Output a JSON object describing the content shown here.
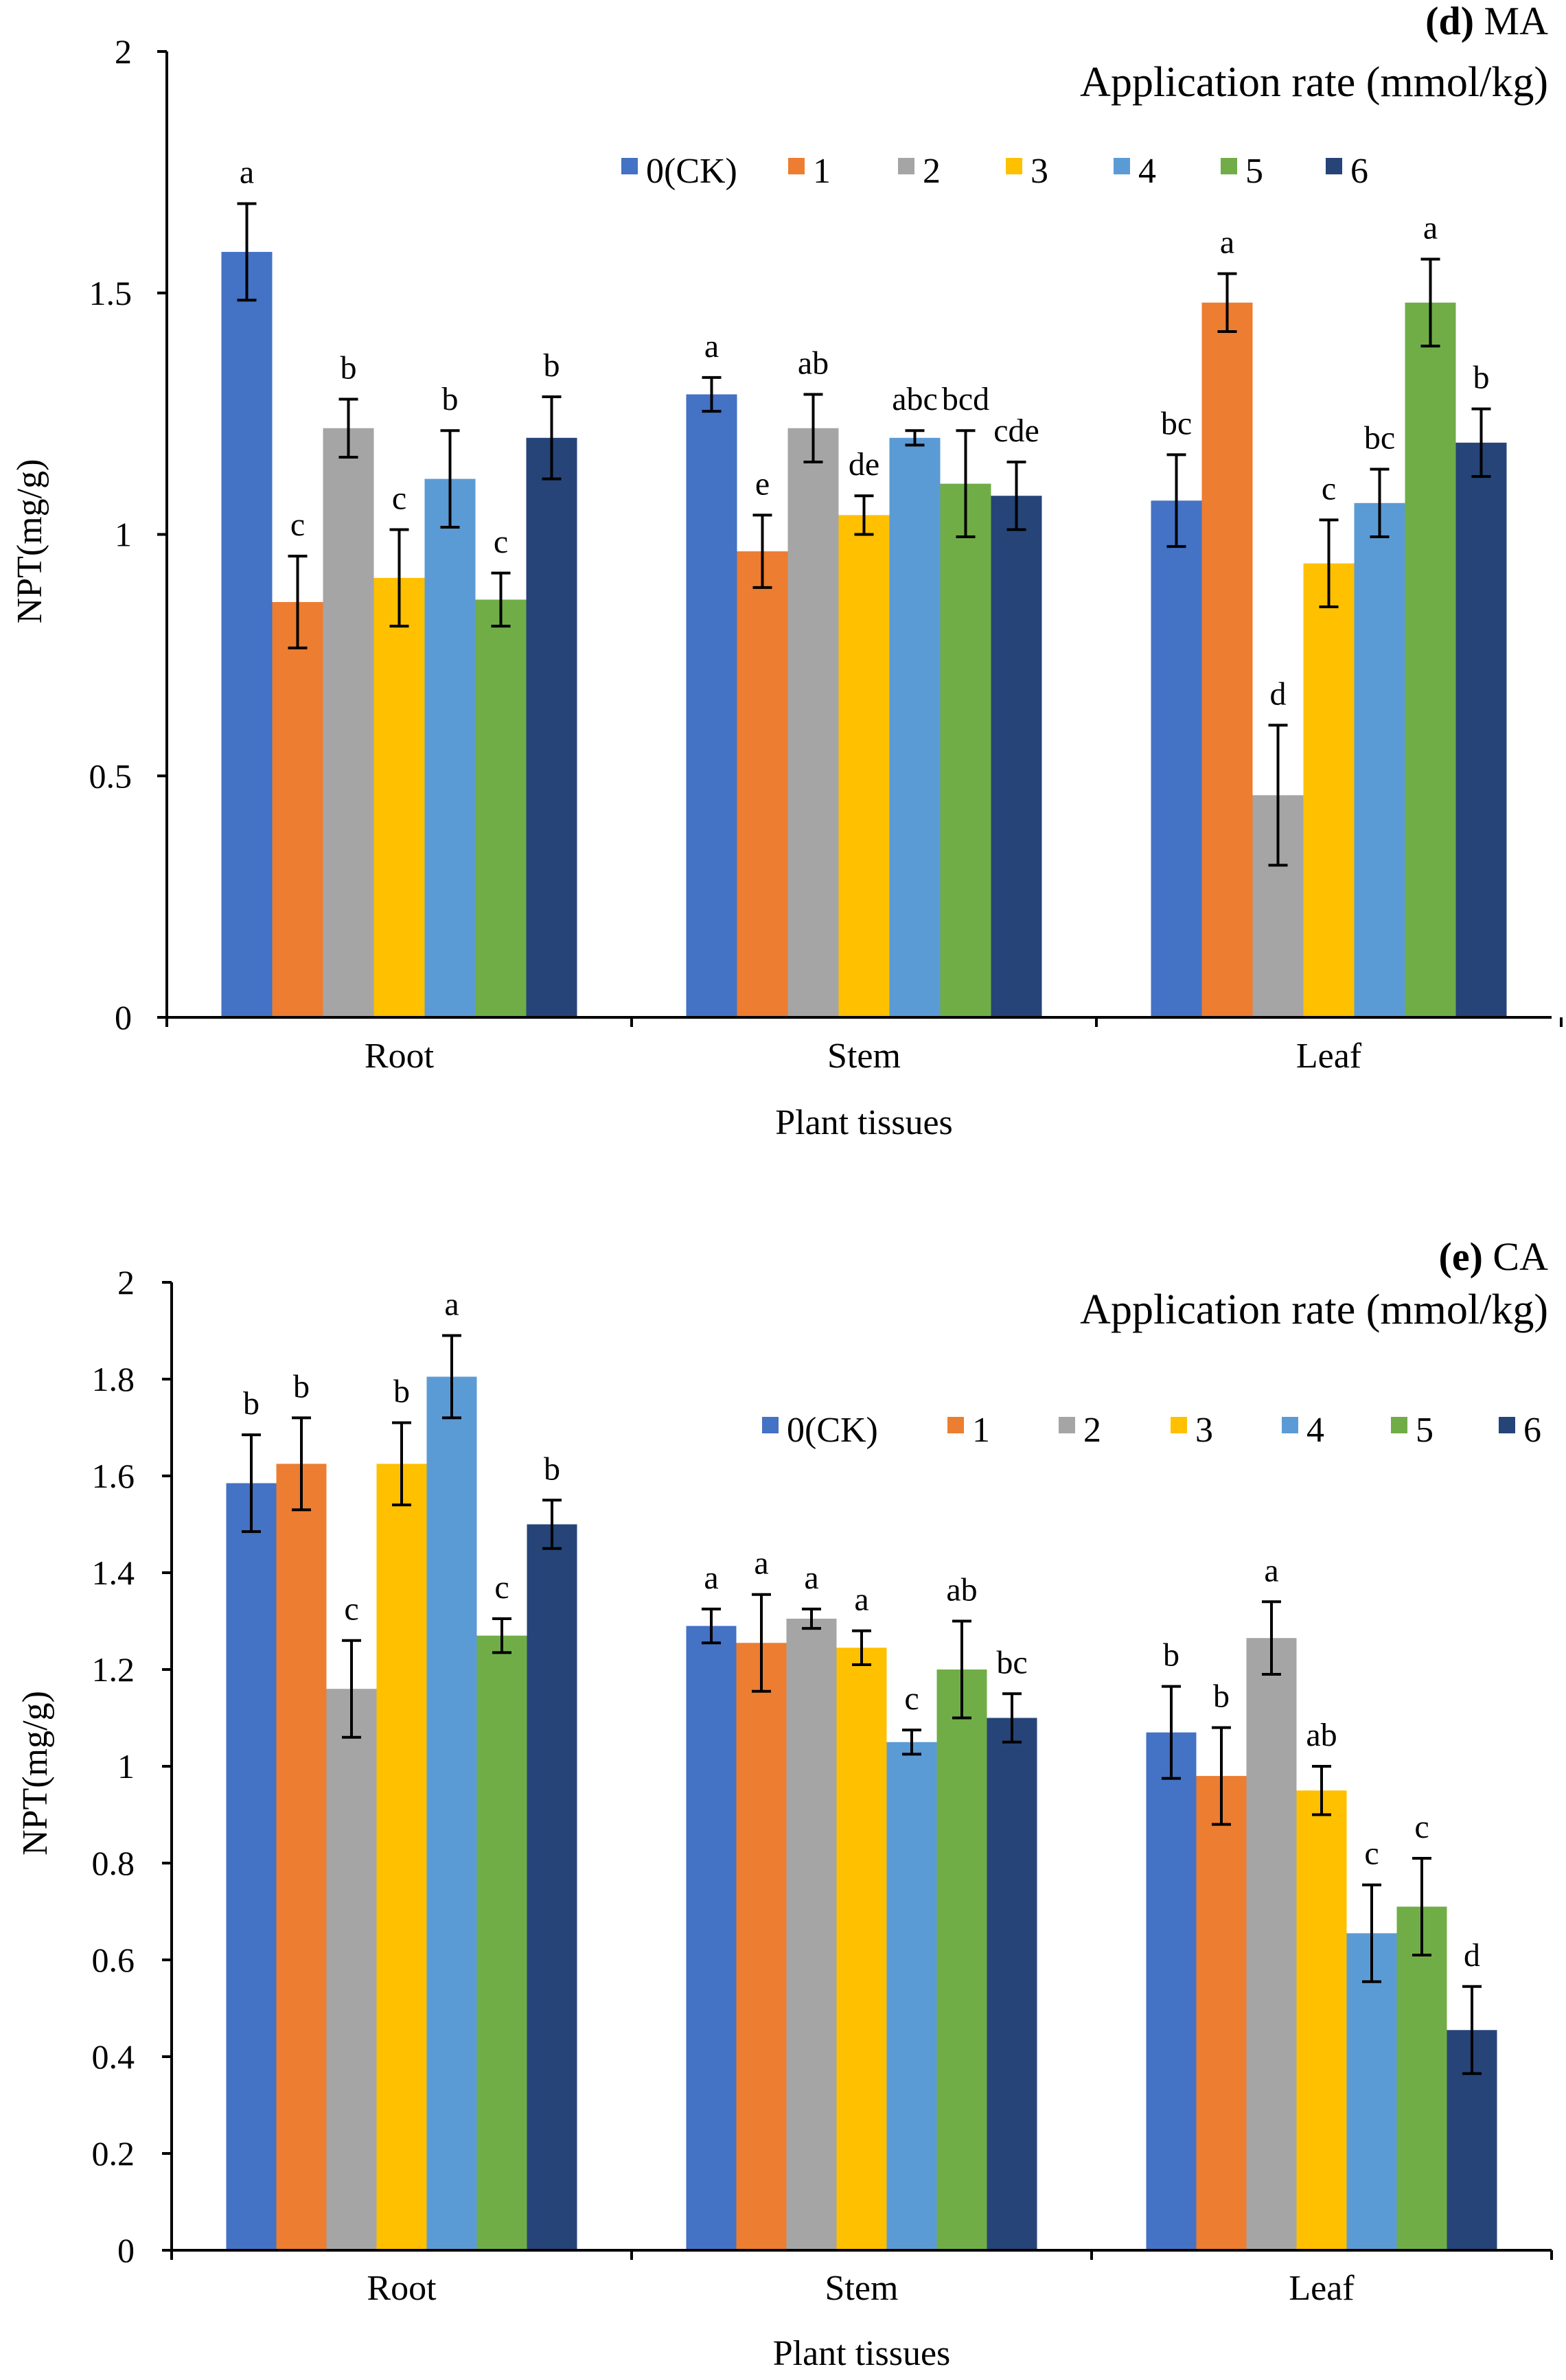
{
  "chart_data": [
    {
      "type": "bar",
      "panel_letter": "(d)",
      "panel_name": "MA",
      "legend_title": "Application rate (mmol/kg)",
      "xlabel": "Plant tissues",
      "ylabel": "NPT(mg/g)",
      "ylim": [
        0,
        2
      ],
      "yticks": [
        "0",
        "0.5",
        "1",
        "1.5",
        "2"
      ],
      "categories": [
        "Root",
        "Stem",
        "Leaf"
      ],
      "series": [
        {
          "name": "0(CK)",
          "color": "#4472c4",
          "values": [
            1.585,
            1.29,
            1.07
          ],
          "errors": [
            0.1,
            0.035,
            0.095
          ],
          "letters": [
            "a",
            "a",
            "bc"
          ]
        },
        {
          "name": "1",
          "color": "#ed7d31",
          "values": [
            0.86,
            0.965,
            1.48
          ],
          "errors": [
            0.095,
            0.075,
            0.06
          ],
          "letters": [
            "c",
            "e",
            "a"
          ]
        },
        {
          "name": "2",
          "color": "#a5a5a5",
          "values": [
            1.22,
            1.22,
            0.46
          ],
          "errors": [
            0.06,
            0.07,
            0.145
          ],
          "letters": [
            "b",
            "ab",
            "d"
          ]
        },
        {
          "name": "3",
          "color": "#ffc000",
          "values": [
            0.91,
            1.04,
            0.94
          ],
          "errors": [
            0.1,
            0.04,
            0.09
          ],
          "letters": [
            "c",
            "de",
            "c"
          ]
        },
        {
          "name": "4",
          "color": "#5b9bd5",
          "values": [
            1.115,
            1.2,
            1.065
          ],
          "errors": [
            0.1,
            0.015,
            0.07
          ],
          "letters": [
            "b",
            "abc",
            "bc"
          ]
        },
        {
          "name": "5",
          "color": "#70ad47",
          "values": [
            0.865,
            1.105,
            1.48
          ],
          "errors": [
            0.055,
            0.11,
            0.09
          ],
          "letters": [
            "c",
            "bcd",
            "a"
          ]
        },
        {
          "name": "6",
          "color": "#264478",
          "values": [
            1.2,
            1.08,
            1.19
          ],
          "errors": [
            0.085,
            0.07,
            0.07
          ],
          "letters": [
            "b",
            "cde",
            "b"
          ]
        }
      ]
    },
    {
      "type": "bar",
      "panel_letter": "(e)",
      "panel_name": "CA",
      "legend_title": "Application rate (mmol/kg)",
      "xlabel": "Plant tissues",
      "ylabel": "NPT(mg/g)",
      "ylim": [
        0,
        2
      ],
      "yticks": [
        "0",
        "0.2",
        "0.4",
        "0.6",
        "0.8",
        "1",
        "1.2",
        "1.4",
        "1.6",
        "1.8",
        "2"
      ],
      "categories": [
        "Root",
        "Stem",
        "Leaf"
      ],
      "series": [
        {
          "name": "0(CK)",
          "color": "#4472c4",
          "values": [
            1.585,
            1.29,
            1.07
          ],
          "errors": [
            0.1,
            0.035,
            0.095
          ],
          "letters": [
            "b",
            "a",
            "b"
          ]
        },
        {
          "name": "1",
          "color": "#ed7d31",
          "values": [
            1.625,
            1.255,
            0.98
          ],
          "errors": [
            0.095,
            0.1,
            0.1
          ],
          "letters": [
            "b",
            "a",
            "b"
          ]
        },
        {
          "name": "2",
          "color": "#a5a5a5",
          "values": [
            1.16,
            1.305,
            1.265
          ],
          "errors": [
            0.1,
            0.02,
            0.075
          ],
          "letters": [
            "c",
            "a",
            "a"
          ]
        },
        {
          "name": "3",
          "color": "#ffc000",
          "values": [
            1.625,
            1.245,
            0.95
          ],
          "errors": [
            0.085,
            0.035,
            0.05
          ],
          "letters": [
            "b",
            "a",
            "ab"
          ]
        },
        {
          "name": "4",
          "color": "#5b9bd5",
          "values": [
            1.805,
            1.05,
            0.655
          ],
          "errors": [
            0.085,
            0.025,
            0.1
          ],
          "letters": [
            "a",
            "c",
            "c"
          ]
        },
        {
          "name": "5",
          "color": "#70ad47",
          "values": [
            1.27,
            1.2,
            0.71
          ],
          "errors": [
            0.035,
            0.1,
            0.1
          ],
          "letters": [
            "c",
            "ab",
            "c"
          ]
        },
        {
          "name": "6",
          "color": "#264478",
          "values": [
            1.5,
            1.1,
            0.455
          ],
          "errors": [
            0.05,
            0.05,
            0.09
          ],
          "letters": [
            "b",
            "bc",
            "d"
          ]
        }
      ]
    }
  ]
}
